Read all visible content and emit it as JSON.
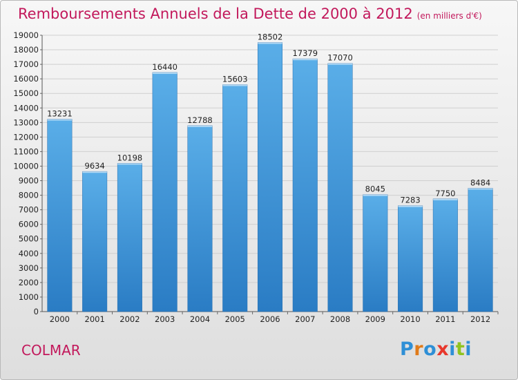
{
  "title": "Remboursements Annuels de la Dette de 2000 à 2012",
  "subtitle": "(en milliers d'€)",
  "city": "COLMAR",
  "brand": {
    "letters": [
      "P",
      "r",
      "o",
      "x",
      "i",
      "t",
      "i"
    ],
    "colors": [
      "#2e8fd6",
      "#e07b1a",
      "#2e8fd6",
      "#e8372c",
      "#2e8fd6",
      "#8fc31f",
      "#2e8fd6"
    ]
  },
  "colors": {
    "title": "#c2185b",
    "bar_top": "#5aaee8",
    "bar_bottom": "#2a7cc4",
    "grid": "#cfcfcf"
  },
  "chart_data": {
    "type": "bar",
    "categories": [
      "2000",
      "2001",
      "2002",
      "2003",
      "2004",
      "2005",
      "2006",
      "2007",
      "2008",
      "2009",
      "2010",
      "2011",
      "2012"
    ],
    "values": [
      13231,
      9634,
      10198,
      16440,
      12788,
      15603,
      18502,
      17379,
      17070,
      8045,
      7283,
      7750,
      8484
    ],
    "value_labels": [
      "13231",
      "9634",
      "10198",
      "16440",
      "12788",
      "15603",
      "18502",
      "17379",
      "17070",
      "8045",
      "7283",
      "7750",
      "8484"
    ],
    "yticks": [
      "0",
      "1000",
      "2000",
      "3000",
      "4000",
      "5000",
      "6000",
      "7000",
      "8000",
      "9000",
      "10000",
      "11000",
      "12000",
      "13000",
      "14000",
      "15000",
      "16000",
      "17000",
      "18000",
      "19000"
    ],
    "ylim": [
      0,
      19000
    ],
    "grid": true,
    "xlabel": "",
    "ylabel": ""
  }
}
